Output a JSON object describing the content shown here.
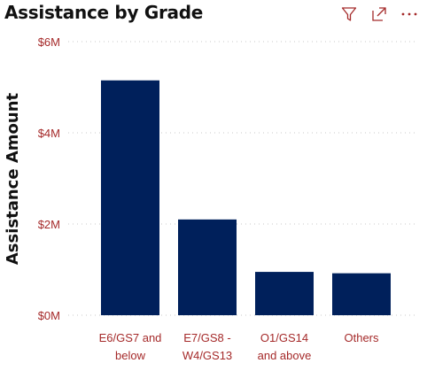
{
  "header": {
    "title": "Assistance by Grade",
    "icons": [
      "filter-icon",
      "focus-mode-icon",
      "more-options-icon"
    ]
  },
  "colors": {
    "bar": "#00205b",
    "tick_text": "#a52a2a",
    "title": "#111111",
    "icon": "#a52a2a"
  },
  "chart_data": {
    "type": "bar",
    "title": "Assistance by Grade",
    "xlabel": "",
    "ylabel": "Assistance Amount",
    "categories": [
      [
        "E6/GS7 and",
        "below"
      ],
      [
        "E7/GS8 -",
        "W4/GS13"
      ],
      [
        "O1/GS14",
        "and above"
      ],
      [
        "Others"
      ]
    ],
    "values": [
      5150000,
      2100000,
      950000,
      920000
    ],
    "ylim": [
      0,
      6000000
    ],
    "yticks": [
      0,
      2000000,
      4000000,
      6000000
    ],
    "ytick_labels": [
      "$0M",
      "$2M",
      "$4M",
      "$6M"
    ],
    "grid": true
  }
}
